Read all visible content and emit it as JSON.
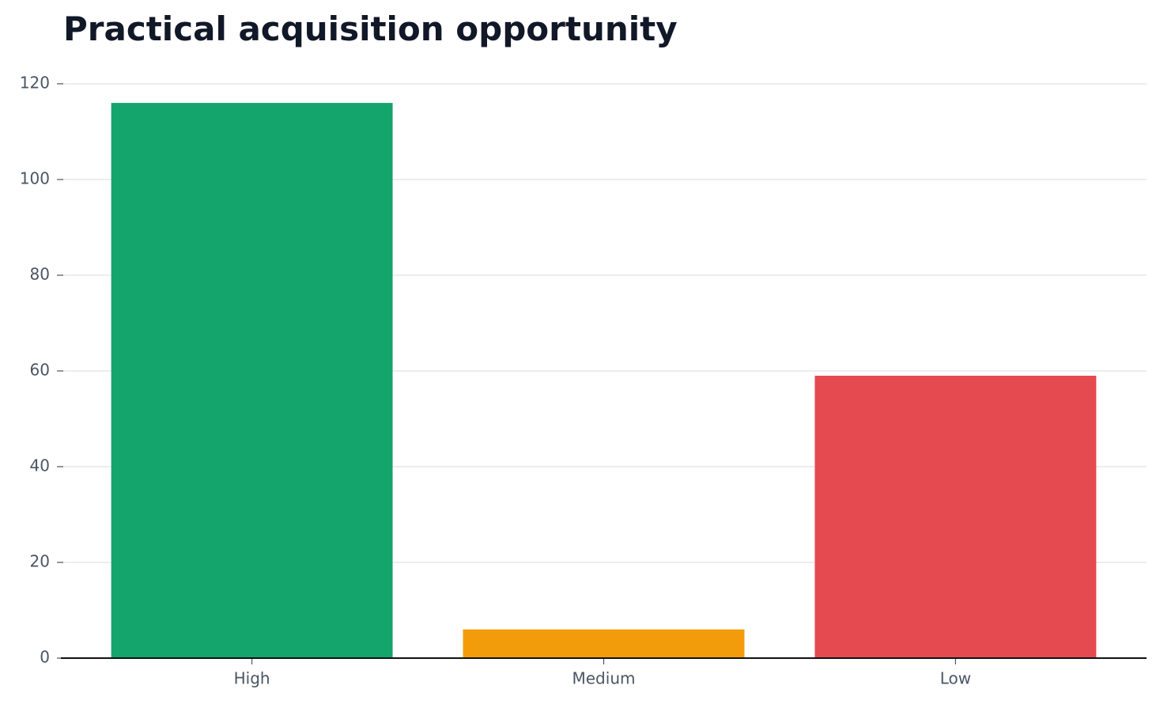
{
  "chart_data": {
    "type": "bar",
    "title": "Practical acquisition opportunity",
    "categories": [
      "High",
      "Medium",
      "Low"
    ],
    "values": [
      116,
      6,
      59
    ],
    "colors": [
      "#14a56c",
      "#f39c0b",
      "#e44a4f"
    ],
    "ylim": [
      0,
      121.8
    ],
    "yticks": [
      0,
      20,
      40,
      60,
      80,
      100,
      120
    ],
    "grid": true
  }
}
